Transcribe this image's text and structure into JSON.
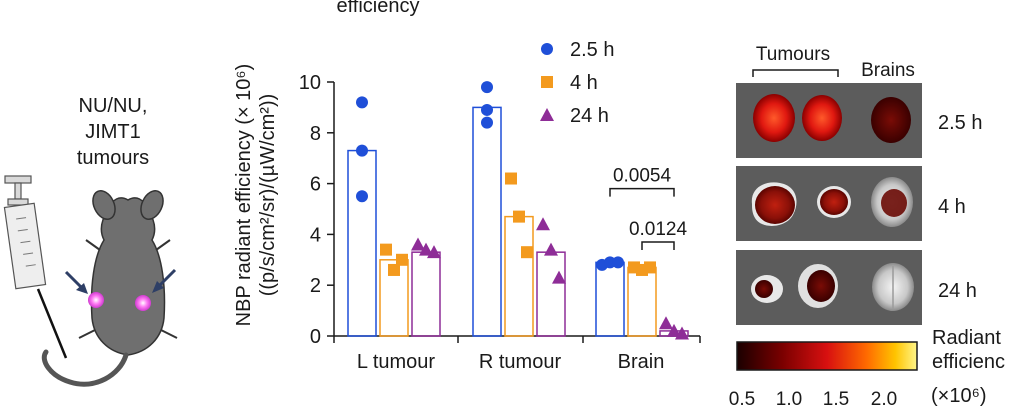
{
  "cut_title": "efficiency",
  "mouse_label": [
    "NU/NU,",
    "JIMT1",
    "tumours"
  ],
  "chart_data": {
    "type": "bar",
    "ylabel_line1": "NBP radiant efficiency (× 10⁶)",
    "ylabel_line2": "((p/s/cm²/sr)/(µW/cm²))",
    "ylim": [
      0,
      10
    ],
    "yticks": [
      "0",
      "2",
      "4",
      "6",
      "8",
      "10"
    ],
    "categories": [
      "L tumour",
      "R tumour",
      "Brain"
    ],
    "series": [
      {
        "name": "2.5 h",
        "color": "#1f4fd8",
        "marker": "circle",
        "values": [
          7.3,
          9.0,
          2.9
        ],
        "points": [
          [
            9.2,
            7.3,
            5.5
          ],
          [
            9.8,
            8.9,
            8.4
          ],
          [
            2.8,
            2.9,
            2.9
          ]
        ]
      },
      {
        "name": "4 h",
        "color": "#f39a1e",
        "marker": "square",
        "values": [
          3.0,
          4.7,
          2.7
        ],
        "points": [
          [
            3.4,
            2.6,
            3.0
          ],
          [
            6.2,
            4.7,
            3.3
          ],
          [
            2.7,
            2.6,
            2.7
          ]
        ]
      },
      {
        "name": "24 h",
        "color": "#8e2d97",
        "marker": "triangle",
        "values": [
          3.3,
          3.3,
          0.2
        ],
        "points": [
          [
            3.6,
            3.4,
            3.3
          ],
          [
            4.4,
            3.4,
            2.3
          ],
          [
            0.5,
            0.2,
            0.1
          ]
        ]
      }
    ],
    "annotations": [
      {
        "text": "0.0054",
        "from_series": 0,
        "to_series": 2,
        "category": 2,
        "y": 5.8
      },
      {
        "text": "0.0124",
        "from_series": 1,
        "to_series": 2,
        "category": 2,
        "y": 3.7
      }
    ],
    "legend_position": "top-right",
    "grid": false
  },
  "image_panel": {
    "group_labels": [
      "Tumours",
      "Brains"
    ],
    "row_labels": [
      "2.5 h",
      "4 h",
      "24 h"
    ],
    "colorbar_title": [
      "Radiant",
      "efficienc"
    ],
    "colorbar_ticks": [
      "0.5",
      "1.0",
      "1.5",
      "2.0"
    ],
    "colorbar_unit": "(×10⁶)"
  }
}
